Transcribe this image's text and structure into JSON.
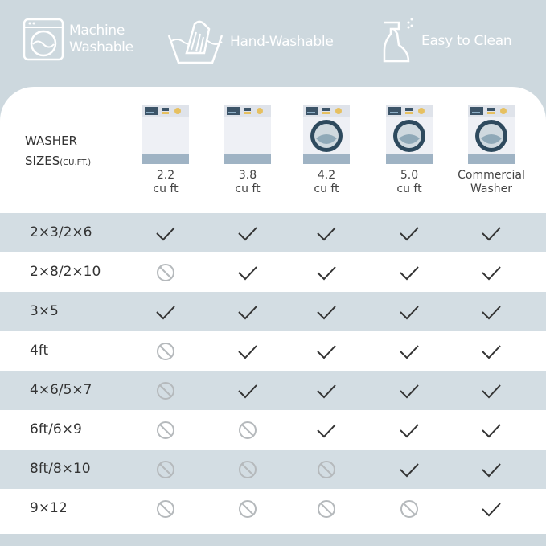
{
  "features": [
    {
      "icon": "washing-machine-icon",
      "label_lines": [
        "Machine",
        "Washable"
      ]
    },
    {
      "icon": "hand-wash-icon",
      "label_lines": [
        "Hand-Washable"
      ]
    },
    {
      "icon": "spray-bottle-icon",
      "label_lines": [
        "Easy to Clean"
      ]
    }
  ],
  "table": {
    "header_title": "WASHER",
    "header_title2": "SIZES",
    "header_unit": "(CU.FT.)",
    "columns": [
      {
        "line1": "2.2",
        "line2": "cu ft",
        "drum": false
      },
      {
        "line1": "3.8",
        "line2": "cu ft",
        "drum": false
      },
      {
        "line1": "4.2",
        "line2": "cu ft",
        "drum": true
      },
      {
        "line1": "5.0",
        "line2": "cu ft",
        "drum": true
      },
      {
        "line1": "Commercial",
        "line2": "Washer",
        "drum": true
      }
    ],
    "rows": [
      {
        "label": "2×3/2×6",
        "values": [
          true,
          true,
          true,
          true,
          true
        ]
      },
      {
        "label": "2×8/2×10",
        "values": [
          false,
          true,
          true,
          true,
          true
        ]
      },
      {
        "label": "3×5",
        "values": [
          true,
          true,
          true,
          true,
          true
        ]
      },
      {
        "label": "4ft",
        "values": [
          false,
          true,
          true,
          true,
          true
        ]
      },
      {
        "label": "4×6/5×7",
        "values": [
          false,
          true,
          true,
          true,
          true
        ]
      },
      {
        "label": "6ft/6×9",
        "values": [
          false,
          false,
          true,
          true,
          true
        ]
      },
      {
        "label": "8ft/8×10",
        "values": [
          false,
          false,
          false,
          true,
          true
        ]
      },
      {
        "label": "9×12",
        "values": [
          false,
          false,
          false,
          false,
          true
        ]
      }
    ]
  },
  "colors": {
    "background": "#cdd8de",
    "row_shade": "#d3dde3",
    "check": "#333333",
    "no": "#b5b9bc"
  }
}
